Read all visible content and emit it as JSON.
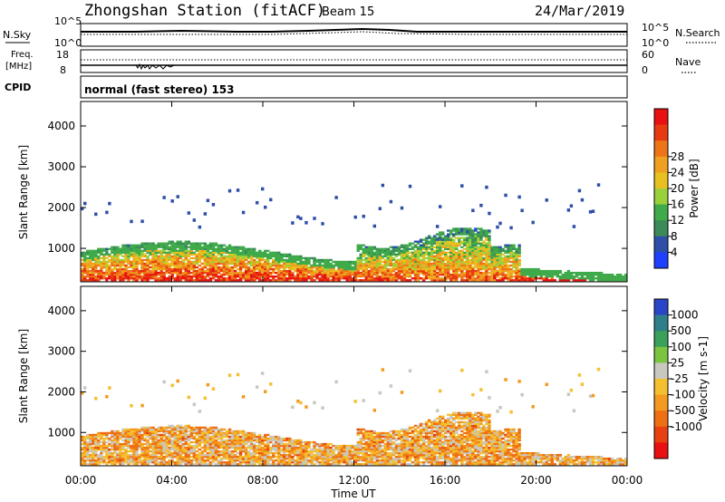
{
  "header": {
    "station": "Zhongshan Station (fitACF)",
    "beam": "Beam 15",
    "date": "24/Mar/2019"
  },
  "noise_panel": {
    "left_label": "N.Sky",
    "right_label": "N.Search",
    "left_ticks": [
      "10^5",
      "10^0"
    ],
    "right_ticks": [
      "10^5",
      "10^0"
    ]
  },
  "freq_panel": {
    "left_label_top": "Freq.",
    "left_label_bottom": "[MHz]",
    "right_label": "Nave",
    "left_ticks": [
      "18",
      "8"
    ],
    "right_ticks": [
      "60",
      "0"
    ]
  },
  "cpid_panel": {
    "label": "CPID",
    "text": "normal (fast stereo) 153"
  },
  "chart_data": [
    {
      "type": "heatmap",
      "name": "power",
      "ylabel": "Slant Range [km]",
      "yticks": [
        "1000",
        "2000",
        "3000",
        "4000"
      ],
      "ylim": [
        180,
        4600
      ],
      "colorbar_label": "Power [dB]",
      "colorbar_ticks": [
        "4",
        "8",
        "12",
        "16",
        "20",
        "24",
        "28"
      ],
      "colorbar_colors": [
        "#1f3fff",
        "#2d4fa8",
        "#3a8a5a",
        "#3faa4a",
        "#9ad03a",
        "#e8c020",
        "#f0a020",
        "#ee7418",
        "#e83a10",
        "#e81010"
      ]
    },
    {
      "type": "heatmap",
      "name": "velocity",
      "ylabel": "Slant Range [km]",
      "yticks": [
        "1000",
        "2000",
        "3000",
        "4000"
      ],
      "ylim": [
        180,
        4600
      ],
      "xlabel": "Time UT",
      "xticks": [
        "00:00",
        "04:00",
        "08:00",
        "12:00",
        "16:00",
        "20:00",
        "00:00"
      ],
      "colorbar_label": "Velocity [m s-1]",
      "colorbar_ticks": [
        "1000",
        "500",
        "100",
        "25",
        "-25",
        "-100",
        "-500",
        "-1000"
      ],
      "colorbar_colors": [
        "#2a46c8",
        "#2f7f8a",
        "#3aa05a",
        "#7cc440",
        "#c8c8c0",
        "#f5c030",
        "#f39a20",
        "#ee6f14",
        "#e84010",
        "#e81010"
      ]
    }
  ]
}
